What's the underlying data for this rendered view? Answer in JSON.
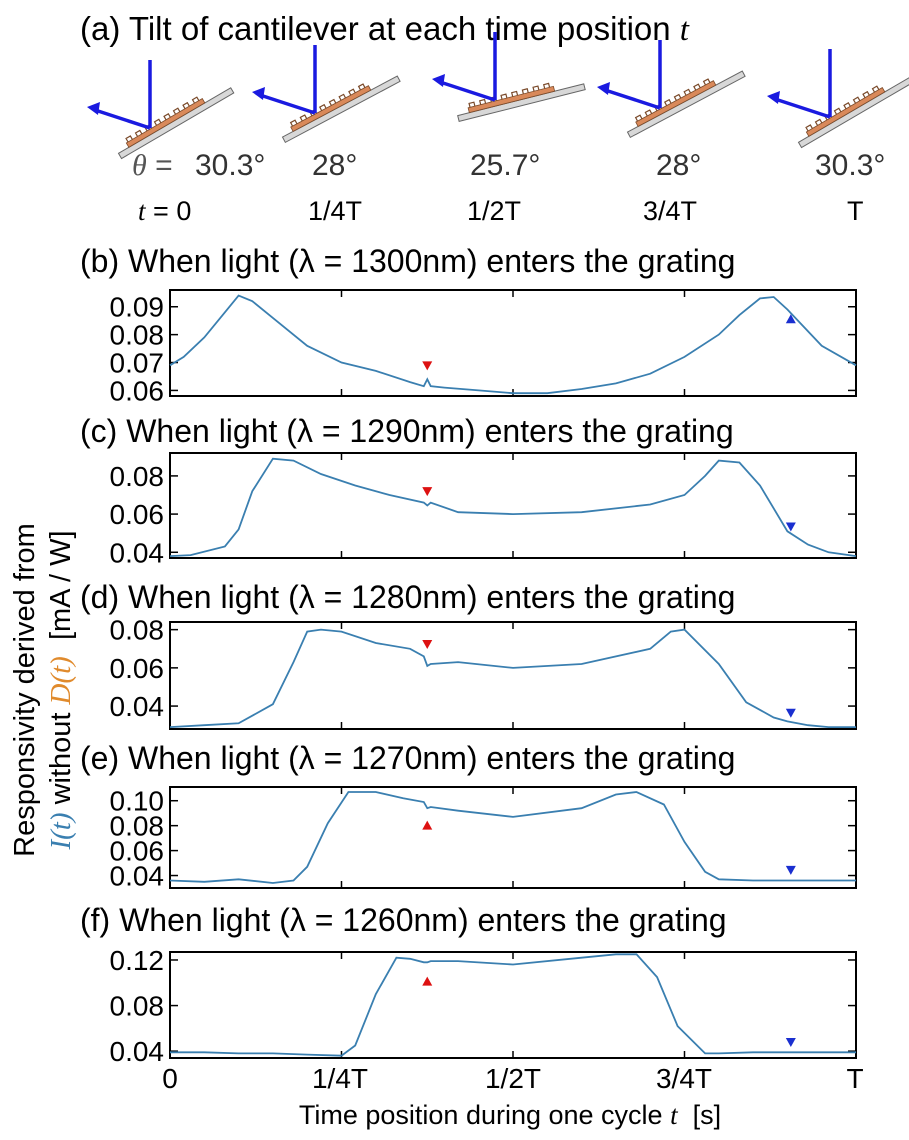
{
  "part_a": {
    "title_prefix": "(a) Tilt of cantilever at each time position ",
    "title_var": "t",
    "angle_symbol": "θ",
    "angle_eq": "=",
    "time_symbol": "t",
    "time_eq": "=",
    "positions": [
      {
        "angle": "30.3°",
        "time": "0",
        "tilt_deg": 30.3
      },
      {
        "angle": "28°",
        "time": "1/4T",
        "tilt_deg": 28
      },
      {
        "angle": "25.7°",
        "time": "1/2T",
        "tilt_deg": 25.7
      },
      {
        "angle": "28°",
        "time": "3/4T",
        "tilt_deg": 28
      },
      {
        "angle": "30.3°",
        "time": "T",
        "tilt_deg": 30.3
      }
    ]
  },
  "ylabel": {
    "line1": "Responsivity derived from",
    "var_i": "I(t)",
    "mid": " without ",
    "var_d": "D(t)",
    "unit": "  [mA / W]"
  },
  "xlabel": {
    "text": "Time position during one cycle ",
    "var": "t",
    "unit": "  [s]"
  },
  "x_ticks": [
    "0",
    "1/4T",
    "1/2T",
    "3/4T",
    "T"
  ],
  "colors": {
    "line": "#3a7fb0",
    "red_marker": "#dd1111",
    "blue_marker": "#1a2fd0",
    "arrow": "#1a1ae0",
    "grating": "#d9895a",
    "orange_label": "#e08a2c"
  },
  "chart_data": [
    {
      "type": "line",
      "title": "(b) When light (λ = 1300nm) enters the grating",
      "ylim": [
        0.058,
        0.096
      ],
      "yticks": [
        0.06,
        0.07,
        0.08,
        0.09
      ],
      "ytick_labels": [
        "0.06",
        "0.07",
        "0.08",
        "0.09"
      ],
      "x": [
        0,
        0.02,
        0.05,
        0.08,
        0.1,
        0.12,
        0.15,
        0.2,
        0.25,
        0.3,
        0.35,
        0.37,
        0.375,
        0.38,
        0.4,
        0.45,
        0.5,
        0.55,
        0.6,
        0.65,
        0.7,
        0.75,
        0.8,
        0.83,
        0.86,
        0.88,
        0.9,
        0.95,
        1.0
      ],
      "y": [
        0.069,
        0.072,
        0.079,
        0.088,
        0.094,
        0.092,
        0.086,
        0.076,
        0.07,
        0.067,
        0.063,
        0.0615,
        0.064,
        0.0615,
        0.061,
        0.06,
        0.059,
        0.059,
        0.0605,
        0.0625,
        0.066,
        0.072,
        0.08,
        0.087,
        0.093,
        0.0935,
        0.089,
        0.076,
        0.069
      ],
      "markers": [
        {
          "x": 0.375,
          "y": 0.069,
          "dir": "down",
          "color": "red"
        },
        {
          "x": 0.905,
          "y": 0.0855,
          "dir": "up",
          "color": "blue"
        }
      ]
    },
    {
      "type": "line",
      "title": "(c) When light (λ = 1290nm) enters the grating",
      "ylim": [
        0.037,
        0.092
      ],
      "yticks": [
        0.04,
        0.06,
        0.08
      ],
      "ytick_labels": [
        "0.04",
        "0.06",
        "0.08"
      ],
      "x": [
        0,
        0.03,
        0.08,
        0.1,
        0.12,
        0.15,
        0.18,
        0.22,
        0.27,
        0.32,
        0.37,
        0.375,
        0.38,
        0.42,
        0.5,
        0.6,
        0.7,
        0.75,
        0.78,
        0.8,
        0.83,
        0.86,
        0.9,
        0.93,
        0.96,
        1.0
      ],
      "y": [
        0.038,
        0.0385,
        0.043,
        0.052,
        0.072,
        0.089,
        0.088,
        0.081,
        0.075,
        0.07,
        0.066,
        0.0645,
        0.066,
        0.061,
        0.06,
        0.061,
        0.065,
        0.07,
        0.08,
        0.088,
        0.087,
        0.075,
        0.051,
        0.044,
        0.04,
        0.038
      ],
      "markers": [
        {
          "x": 0.375,
          "y": 0.072,
          "dir": "down",
          "color": "red"
        },
        {
          "x": 0.905,
          "y": 0.0535,
          "dir": "down",
          "color": "blue"
        }
      ]
    },
    {
      "type": "line",
      "title": "(d) When light (λ = 1280nm) enters the grating",
      "ylim": [
        0.028,
        0.084
      ],
      "yticks": [
        0.04,
        0.06,
        0.08
      ],
      "ytick_labels": [
        "0.04",
        "0.06",
        "0.08"
      ],
      "x": [
        0,
        0.05,
        0.1,
        0.15,
        0.18,
        0.2,
        0.22,
        0.25,
        0.3,
        0.35,
        0.37,
        0.375,
        0.38,
        0.42,
        0.5,
        0.6,
        0.7,
        0.73,
        0.75,
        0.8,
        0.84,
        0.88,
        0.9,
        0.93,
        0.96,
        1.0
      ],
      "y": [
        0.029,
        0.03,
        0.031,
        0.041,
        0.063,
        0.079,
        0.08,
        0.079,
        0.073,
        0.07,
        0.066,
        0.061,
        0.062,
        0.063,
        0.06,
        0.062,
        0.07,
        0.079,
        0.08,
        0.062,
        0.042,
        0.034,
        0.032,
        0.03,
        0.029,
        0.029
      ],
      "markers": [
        {
          "x": 0.375,
          "y": 0.0725,
          "dir": "down",
          "color": "red"
        },
        {
          "x": 0.905,
          "y": 0.0365,
          "dir": "down",
          "color": "blue"
        }
      ]
    },
    {
      "type": "line",
      "title": "(e) When light (λ = 1270nm) enters the grating",
      "ylim": [
        0.03,
        0.111
      ],
      "yticks": [
        0.04,
        0.06,
        0.08,
        0.1
      ],
      "ytick_labels": [
        "0.04",
        "0.06",
        "0.08",
        "0.10"
      ],
      "x": [
        0,
        0.05,
        0.1,
        0.15,
        0.18,
        0.2,
        0.23,
        0.26,
        0.3,
        0.34,
        0.37,
        0.375,
        0.38,
        0.42,
        0.5,
        0.6,
        0.65,
        0.68,
        0.72,
        0.75,
        0.78,
        0.8,
        0.85,
        0.9,
        0.95,
        1.0
      ],
      "y": [
        0.036,
        0.035,
        0.037,
        0.034,
        0.036,
        0.047,
        0.082,
        0.107,
        0.107,
        0.102,
        0.099,
        0.094,
        0.095,
        0.092,
        0.087,
        0.094,
        0.105,
        0.107,
        0.097,
        0.067,
        0.043,
        0.037,
        0.036,
        0.036,
        0.036,
        0.036
      ],
      "markers": [
        {
          "x": 0.375,
          "y": 0.08,
          "dir": "up",
          "color": "red"
        },
        {
          "x": 0.905,
          "y": 0.0445,
          "dir": "down",
          "color": "blue"
        }
      ]
    },
    {
      "type": "line",
      "title": "(f) When light (λ = 1260nm) enters the grating",
      "ylim": [
        0.034,
        0.127
      ],
      "yticks": [
        0.04,
        0.08,
        0.12
      ],
      "ytick_labels": [
        "0.04",
        "0.08",
        "0.12"
      ],
      "x": [
        0,
        0.05,
        0.1,
        0.15,
        0.2,
        0.25,
        0.27,
        0.3,
        0.33,
        0.35,
        0.37,
        0.375,
        0.38,
        0.42,
        0.5,
        0.6,
        0.65,
        0.68,
        0.71,
        0.74,
        0.78,
        0.8,
        0.85,
        0.9,
        0.95,
        1.0
      ],
      "y": [
        0.039,
        0.039,
        0.038,
        0.038,
        0.037,
        0.036,
        0.045,
        0.09,
        0.122,
        0.121,
        0.118,
        0.118,
        0.119,
        0.119,
        0.116,
        0.122,
        0.125,
        0.125,
        0.105,
        0.062,
        0.038,
        0.038,
        0.039,
        0.039,
        0.039,
        0.039
      ],
      "markers": [
        {
          "x": 0.375,
          "y": 0.101,
          "dir": "up",
          "color": "red"
        },
        {
          "x": 0.905,
          "y": 0.048,
          "dir": "down",
          "color": "blue"
        }
      ]
    }
  ]
}
